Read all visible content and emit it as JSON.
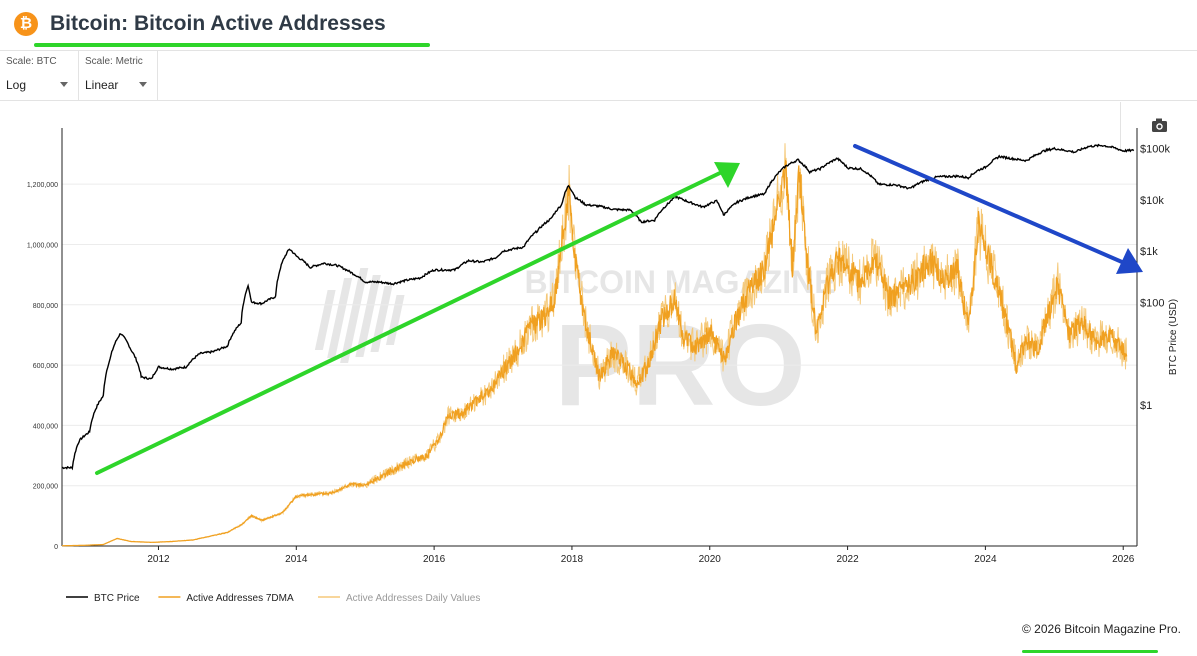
{
  "header": {
    "title": "Bitcoin: Bitcoin Active Addresses",
    "logo_glyph": "₿"
  },
  "controls": {
    "scale_btc": {
      "label": "Scale: BTC",
      "value": "Log"
    },
    "scale_metric": {
      "label": "Scale: Metric",
      "value": "Linear"
    }
  },
  "icons": {
    "camera": "camera-icon",
    "logo": "bitcoin-logo-icon"
  },
  "colors": {
    "btc_price": "#000000",
    "active_7dma": "#f0a020",
    "active_daily": "#f5c97a",
    "green_arrow": "#2ed52a",
    "blue_arrow": "#1f47c8"
  },
  "watermark": {
    "top": "BITCOIN MAGAZINE",
    "bottom": "PRO"
  },
  "chart_data": {
    "type": "line",
    "y_left": {
      "ticks": [
        "0",
        "200,000",
        "400,000",
        "600,000",
        "800,000",
        "1,000,000",
        "1,200,000"
      ],
      "range": [
        0,
        1320000
      ]
    },
    "y_right": {
      "label": "BTC Price (USD)",
      "scale": "log",
      "ticks": [
        {
          "value": 1,
          "label": "$1"
        },
        {
          "value": 100,
          "label": "$100"
        },
        {
          "value": 1000,
          "label": "$1k"
        },
        {
          "value": 10000,
          "label": "$10k"
        },
        {
          "value": 100000,
          "label": "$100k"
        }
      ]
    },
    "x": {
      "ticks": [
        "2012",
        "2014",
        "2016",
        "2018",
        "2020",
        "2022",
        "2024",
        "2026"
      ],
      "range": [
        2010.6,
        2026.2
      ]
    },
    "legend": {
      "placement": "bottom-left"
    },
    "series": [
      {
        "name": "BTC Price",
        "axis": "right",
        "points": [
          [
            2010.6,
            0.06
          ],
          [
            2010.75,
            0.06
          ],
          [
            2010.85,
            0.2
          ],
          [
            2011.0,
            0.3
          ],
          [
            2011.1,
            0.9
          ],
          [
            2011.2,
            1.5
          ],
          [
            2011.3,
            8
          ],
          [
            2011.45,
            25
          ],
          [
            2011.6,
            12
          ],
          [
            2011.75,
            3.5
          ],
          [
            2011.9,
            3.2
          ],
          [
            2012.0,
            5.5
          ],
          [
            2012.2,
            5
          ],
          [
            2012.4,
            5.5
          ],
          [
            2012.6,
            10
          ],
          [
            2012.8,
            11
          ],
          [
            2013.0,
            14
          ],
          [
            2013.2,
            40
          ],
          [
            2013.3,
            210
          ],
          [
            2013.35,
            100
          ],
          [
            2013.5,
            95
          ],
          [
            2013.7,
            130
          ],
          [
            2013.9,
            1100
          ],
          [
            2014.0,
            800
          ],
          [
            2014.2,
            480
          ],
          [
            2014.4,
            580
          ],
          [
            2014.6,
            520
          ],
          [
            2014.8,
            380
          ],
          [
            2015.0,
            250
          ],
          [
            2015.2,
            250
          ],
          [
            2015.4,
            230
          ],
          [
            2015.6,
            270
          ],
          [
            2015.8,
            300
          ],
          [
            2016.0,
            430
          ],
          [
            2016.3,
            430
          ],
          [
            2016.5,
            650
          ],
          [
            2016.7,
            610
          ],
          [
            2016.9,
            750
          ],
          [
            2017.0,
            1000
          ],
          [
            2017.3,
            1200
          ],
          [
            2017.5,
            2500
          ],
          [
            2017.7,
            4300
          ],
          [
            2017.85,
            8000
          ],
          [
            2017.95,
            19000
          ],
          [
            2018.05,
            11000
          ],
          [
            2018.2,
            8000
          ],
          [
            2018.4,
            7500
          ],
          [
            2018.6,
            6500
          ],
          [
            2018.85,
            6300
          ],
          [
            2019.0,
            3700
          ],
          [
            2019.2,
            4000
          ],
          [
            2019.4,
            8500
          ],
          [
            2019.5,
            11500
          ],
          [
            2019.7,
            9000
          ],
          [
            2019.9,
            7200
          ],
          [
            2020.1,
            9500
          ],
          [
            2020.2,
            5000
          ],
          [
            2020.4,
            9000
          ],
          [
            2020.6,
            11500
          ],
          [
            2020.8,
            13000
          ],
          [
            2020.95,
            28000
          ],
          [
            2021.1,
            45000
          ],
          [
            2021.28,
            60000
          ],
          [
            2021.45,
            35000
          ],
          [
            2021.6,
            40000
          ],
          [
            2021.85,
            64000
          ],
          [
            2022.0,
            42000
          ],
          [
            2022.2,
            40000
          ],
          [
            2022.45,
            20000
          ],
          [
            2022.7,
            19500
          ],
          [
            2022.9,
            16500
          ],
          [
            2023.1,
            23000
          ],
          [
            2023.3,
            28000
          ],
          [
            2023.6,
            29000
          ],
          [
            2023.75,
            27000
          ],
          [
            2023.9,
            38000
          ],
          [
            2024.0,
            43000
          ],
          [
            2024.2,
            70000
          ],
          [
            2024.4,
            63000
          ],
          [
            2024.6,
            58000
          ],
          [
            2024.85,
            90000
          ],
          [
            2025.0,
            100000
          ],
          [
            2025.3,
            85000
          ],
          [
            2025.5,
            110000
          ],
          [
            2025.7,
            115000
          ],
          [
            2025.85,
            105000
          ],
          [
            2026.0,
            90000
          ],
          [
            2026.15,
            92000
          ]
        ]
      },
      {
        "name": "Active Addresses 7DMA",
        "axis": "left",
        "points": [
          [
            2010.6,
            1000
          ],
          [
            2010.9,
            2000
          ],
          [
            2011.2,
            5000
          ],
          [
            2011.4,
            25000
          ],
          [
            2011.6,
            15000
          ],
          [
            2011.9,
            12000
          ],
          [
            2012.2,
            15000
          ],
          [
            2012.5,
            20000
          ],
          [
            2012.8,
            35000
          ],
          [
            2013.0,
            45000
          ],
          [
            2013.2,
            70000
          ],
          [
            2013.35,
            100000
          ],
          [
            2013.5,
            85000
          ],
          [
            2013.8,
            110000
          ],
          [
            2014.0,
            165000
          ],
          [
            2014.2,
            170000
          ],
          [
            2014.5,
            175000
          ],
          [
            2014.8,
            205000
          ],
          [
            2015.0,
            200000
          ],
          [
            2015.3,
            240000
          ],
          [
            2015.6,
            275000
          ],
          [
            2015.9,
            300000
          ],
          [
            2016.1,
            370000
          ],
          [
            2016.2,
            430000
          ],
          [
            2016.4,
            440000
          ],
          [
            2016.6,
            480000
          ],
          [
            2016.8,
            510000
          ],
          [
            2017.0,
            580000
          ],
          [
            2017.2,
            640000
          ],
          [
            2017.4,
            730000
          ],
          [
            2017.6,
            760000
          ],
          [
            2017.75,
            820000
          ],
          [
            2017.85,
            1000000
          ],
          [
            2017.95,
            1180000
          ],
          [
            2018.05,
            950000
          ],
          [
            2018.2,
            730000
          ],
          [
            2018.4,
            560000
          ],
          [
            2018.6,
            640000
          ],
          [
            2018.8,
            590000
          ],
          [
            2018.95,
            540000
          ],
          [
            2019.1,
            600000
          ],
          [
            2019.3,
            750000
          ],
          [
            2019.5,
            820000
          ],
          [
            2019.6,
            700000
          ],
          [
            2019.8,
            660000
          ],
          [
            2020.0,
            710000
          ],
          [
            2020.2,
            620000
          ],
          [
            2020.4,
            760000
          ],
          [
            2020.6,
            860000
          ],
          [
            2020.8,
            920000
          ],
          [
            2021.0,
            1150000
          ],
          [
            2021.1,
            1240000
          ],
          [
            2021.2,
            920000
          ],
          [
            2021.3,
            1240000
          ],
          [
            2021.4,
            970000
          ],
          [
            2021.55,
            700000
          ],
          [
            2021.7,
            860000
          ],
          [
            2021.85,
            950000
          ],
          [
            2022.0,
            920000
          ],
          [
            2022.2,
            870000
          ],
          [
            2022.4,
            960000
          ],
          [
            2022.6,
            820000
          ],
          [
            2022.8,
            850000
          ],
          [
            2023.0,
            890000
          ],
          [
            2023.2,
            950000
          ],
          [
            2023.4,
            880000
          ],
          [
            2023.6,
            920000
          ],
          [
            2023.75,
            720000
          ],
          [
            2023.9,
            1060000
          ],
          [
            2024.0,
            980000
          ],
          [
            2024.2,
            850000
          ],
          [
            2024.35,
            700000
          ],
          [
            2024.45,
            600000
          ],
          [
            2024.6,
            680000
          ],
          [
            2024.75,
            650000
          ],
          [
            2024.9,
            760000
          ],
          [
            2025.05,
            870000
          ],
          [
            2025.2,
            700000
          ],
          [
            2025.4,
            740000
          ],
          [
            2025.6,
            680000
          ],
          [
            2025.8,
            700000
          ],
          [
            2025.95,
            660000
          ],
          [
            2026.05,
            640000
          ]
        ]
      }
    ]
  },
  "legend": [
    {
      "label": "BTC Price",
      "color": "#000000"
    },
    {
      "label": "Active Addresses 7DMA",
      "color": "#f0a020"
    },
    {
      "label": "Active Addresses Daily Values",
      "color": "#f5c97a"
    }
  ],
  "footer": {
    "copyright": "© 2026 Bitcoin Magazine Pro."
  }
}
